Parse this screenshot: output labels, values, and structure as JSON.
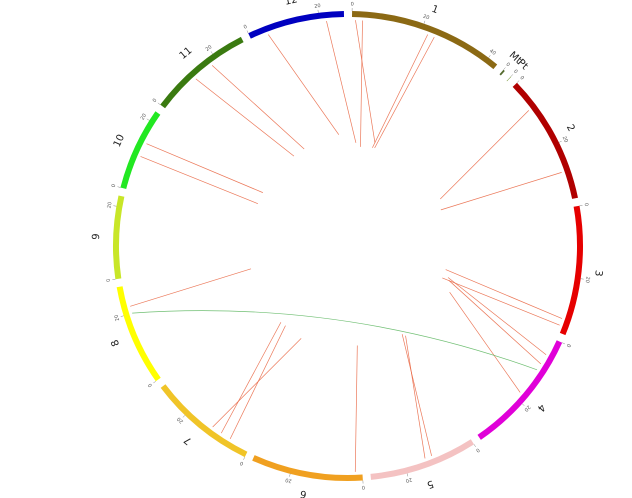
{
  "chart_data": {
    "type": "circos",
    "chromosomes": [
      {
        "name": "1",
        "length": 43,
        "color": "#8b6914"
      },
      {
        "name": "Mt",
        "length": 0.5,
        "color": "#556b2f"
      },
      {
        "name": "Pt",
        "length": 0.13,
        "color": "#6b8e23"
      },
      {
        "name": "2",
        "length": 36,
        "color": "#b00000"
      },
      {
        "name": "3",
        "length": 36,
        "color": "#e60000"
      },
      {
        "name": "4",
        "length": 35,
        "color": "#e000d8"
      },
      {
        "name": "5",
        "length": 30,
        "color": "#f4c2c2"
      },
      {
        "name": "6",
        "length": 31,
        "color": "#f0a020"
      },
      {
        "name": "7",
        "length": 30,
        "color": "#f0c428"
      },
      {
        "name": "8",
        "length": 28,
        "color": "#ffff00"
      },
      {
        "name": "9",
        "length": 23,
        "color": "#c8e628"
      },
      {
        "name": "10",
        "length": 23,
        "color": "#22e822"
      },
      {
        "name": "11",
        "length": 29,
        "color": "#3a7a10"
      },
      {
        "name": "12",
        "length": 27,
        "color": "#0000c0"
      }
    ],
    "ticks": [
      0,
      20,
      40
    ],
    "links": [
      {
        "source": {
          "chr": "1",
          "pos": 3
        },
        "target": {
          "chr": "6",
          "pos": 2
        },
        "color": "#e8603c"
      },
      {
        "source": {
          "chr": "1",
          "pos": 22
        },
        "target": {
          "chr": "7",
          "pos": 6
        },
        "color": "#e8603c"
      },
      {
        "source": {
          "chr": "1",
          "pos": 24
        },
        "target": {
          "chr": "7",
          "pos": 9
        },
        "color": "#e8603c"
      },
      {
        "source": {
          "chr": "2",
          "pos": 8
        },
        "target": {
          "chr": "7",
          "pos": 12
        },
        "color": "#e8603c"
      },
      {
        "source": {
          "chr": "2",
          "pos": 28
        },
        "target": {
          "chr": "8",
          "pos": 22
        },
        "color": "#e8603c"
      },
      {
        "source": {
          "chr": "3",
          "pos": 34
        },
        "target": {
          "chr": "10",
          "pos": 10
        },
        "color": "#e8603c"
      },
      {
        "source": {
          "chr": "3",
          "pos": 32
        },
        "target": {
          "chr": "10",
          "pos": 14
        },
        "color": "#e8603c"
      },
      {
        "source": {
          "chr": "4",
          "pos": 5
        },
        "target": {
          "chr": "11",
          "pos": 12
        },
        "color": "#e8603c"
      },
      {
        "source": {
          "chr": "4",
          "pos": 8
        },
        "target": {
          "chr": "11",
          "pos": 18
        },
        "color": "#e8603c"
      },
      {
        "source": {
          "chr": "4",
          "pos": 18
        },
        "target": {
          "chr": "12",
          "pos": 5
        },
        "color": "#e8603c"
      },
      {
        "source": {
          "chr": "5",
          "pos": 12
        },
        "target": {
          "chr": "12",
          "pos": 22
        },
        "color": "#e8603c"
      },
      {
        "source": {
          "chr": "5",
          "pos": 14
        },
        "target": {
          "chr": "1",
          "pos": 1
        },
        "color": "#e8603c"
      },
      {
        "source": {
          "chr": "8",
          "pos": 20
        },
        "target": {
          "chr": "4",
          "pos": 10
        },
        "color": "#4caf50"
      }
    ]
  }
}
